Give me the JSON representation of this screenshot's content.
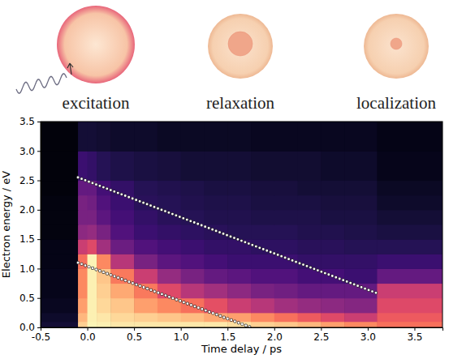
{
  "diagram": {
    "labels": [
      "excitation",
      "relaxation",
      "localization"
    ]
  },
  "chart_data": {
    "type": "heatmap",
    "x_label": "Time delay / ps",
    "y_label": "Electron energy / eV",
    "xlim": [
      -0.5,
      3.8
    ],
    "ylim": [
      0,
      3.5
    ],
    "xticks": [
      -0.5,
      {
        "value": 0,
        "label": "0.0"
      },
      0.5,
      {
        "value": 1,
        "label": "1.0"
      },
      1.5,
      {
        "value": 2,
        "label": "2.0"
      },
      2.5,
      {
        "value": 3,
        "label": "3.0"
      },
      3.5
    ],
    "yticks": [
      {
        "value": 0,
        "label": "0.0"
      },
      0.5,
      {
        "value": 1,
        "label": "1.0"
      },
      1.5,
      {
        "value": 2,
        "label": "2.0"
      },
      2.5,
      {
        "value": 3,
        "label": "3.0"
      },
      3.5
    ],
    "time_bins": [
      -0.5,
      -0.1,
      0.0,
      0.1,
      0.25,
      0.5,
      0.75,
      1.0,
      1.25,
      1.5,
      1.75,
      2.0,
      2.25,
      2.5,
      2.75,
      3.1,
      3.8
    ],
    "energy_bins": [
      0,
      0.1,
      0.25,
      0.5,
      0.75,
      1.0,
      1.25,
      1.5,
      1.75,
      2.0,
      2.25,
      2.5,
      3.0,
      3.5
    ],
    "zlim": [
      0,
      1
    ],
    "cells": [
      [
        0.1,
        0.9,
        0.98,
        0.97,
        0.95,
        0.95,
        0.95,
        0.95,
        0.95,
        0.93,
        0.9,
        0.88,
        0.85,
        0.8,
        0.75,
        0.7
      ],
      [
        0.08,
        0.85,
        0.97,
        0.95,
        0.92,
        0.9,
        0.88,
        0.86,
        0.82,
        0.8,
        0.75,
        0.7,
        0.65,
        0.6,
        0.55,
        0.65
      ],
      [
        0.06,
        0.8,
        0.97,
        0.92,
        0.88,
        0.8,
        0.75,
        0.7,
        0.62,
        0.55,
        0.5,
        0.45,
        0.42,
        0.4,
        0.38,
        0.6
      ],
      [
        0.05,
        0.75,
        0.97,
        0.9,
        0.82,
        0.72,
        0.6,
        0.5,
        0.45,
        0.4,
        0.35,
        0.33,
        0.3,
        0.3,
        0.3,
        0.55
      ],
      [
        0.05,
        0.75,
        0.97,
        0.88,
        0.72,
        0.55,
        0.42,
        0.35,
        0.3,
        0.28,
        0.25,
        0.25,
        0.22,
        0.22,
        0.2,
        0.3
      ],
      [
        0.04,
        0.7,
        0.98,
        0.75,
        0.5,
        0.35,
        0.28,
        0.25,
        0.22,
        0.2,
        0.2,
        0.2,
        0.18,
        0.18,
        0.18,
        0.2
      ],
      [
        0.04,
        0.55,
        0.6,
        0.45,
        0.32,
        0.25,
        0.22,
        0.2,
        0.18,
        0.18,
        0.17,
        0.17,
        0.16,
        0.16,
        0.15,
        0.15
      ],
      [
        0.03,
        0.4,
        0.42,
        0.35,
        0.25,
        0.2,
        0.18,
        0.17,
        0.16,
        0.15,
        0.15,
        0.15,
        0.14,
        0.14,
        0.13,
        0.12
      ],
      [
        0.03,
        0.35,
        0.35,
        0.28,
        0.22,
        0.18,
        0.16,
        0.15,
        0.14,
        0.14,
        0.13,
        0.13,
        0.13,
        0.12,
        0.12,
        0.1
      ],
      [
        0.03,
        0.35,
        0.33,
        0.25,
        0.2,
        0.16,
        0.15,
        0.14,
        0.13,
        0.13,
        0.12,
        0.12,
        0.12,
        0.11,
        0.11,
        0.08
      ],
      [
        0.02,
        0.3,
        0.3,
        0.22,
        0.18,
        0.15,
        0.14,
        0.13,
        0.12,
        0.12,
        0.11,
        0.11,
        0.1,
        0.1,
        0.1,
        0.07
      ],
      [
        0.02,
        0.2,
        0.18,
        0.15,
        0.13,
        0.12,
        0.11,
        0.1,
        0.1,
        0.1,
        0.09,
        0.09,
        0.09,
        0.08,
        0.08,
        0.05
      ],
      [
        0.02,
        0.1,
        0.1,
        0.09,
        0.08,
        0.08,
        0.07,
        0.07,
        0.07,
        0.07,
        0.06,
        0.06,
        0.06,
        0.06,
        0.06,
        0.04
      ]
    ],
    "series": [
      {
        "type": "line",
        "color": "#ffffff",
        "marker": "circle",
        "line_style": "dotted",
        "x": [
          -0.1,
          3.1
        ],
        "values": [
          2.55,
          0.58
        ]
      },
      {
        "type": "line",
        "color": "#ffffff",
        "marker": "circle",
        "line_style": "dotted",
        "x": [
          -0.1,
          1.75
        ],
        "values": [
          1.1,
          0.0
        ]
      }
    ]
  }
}
